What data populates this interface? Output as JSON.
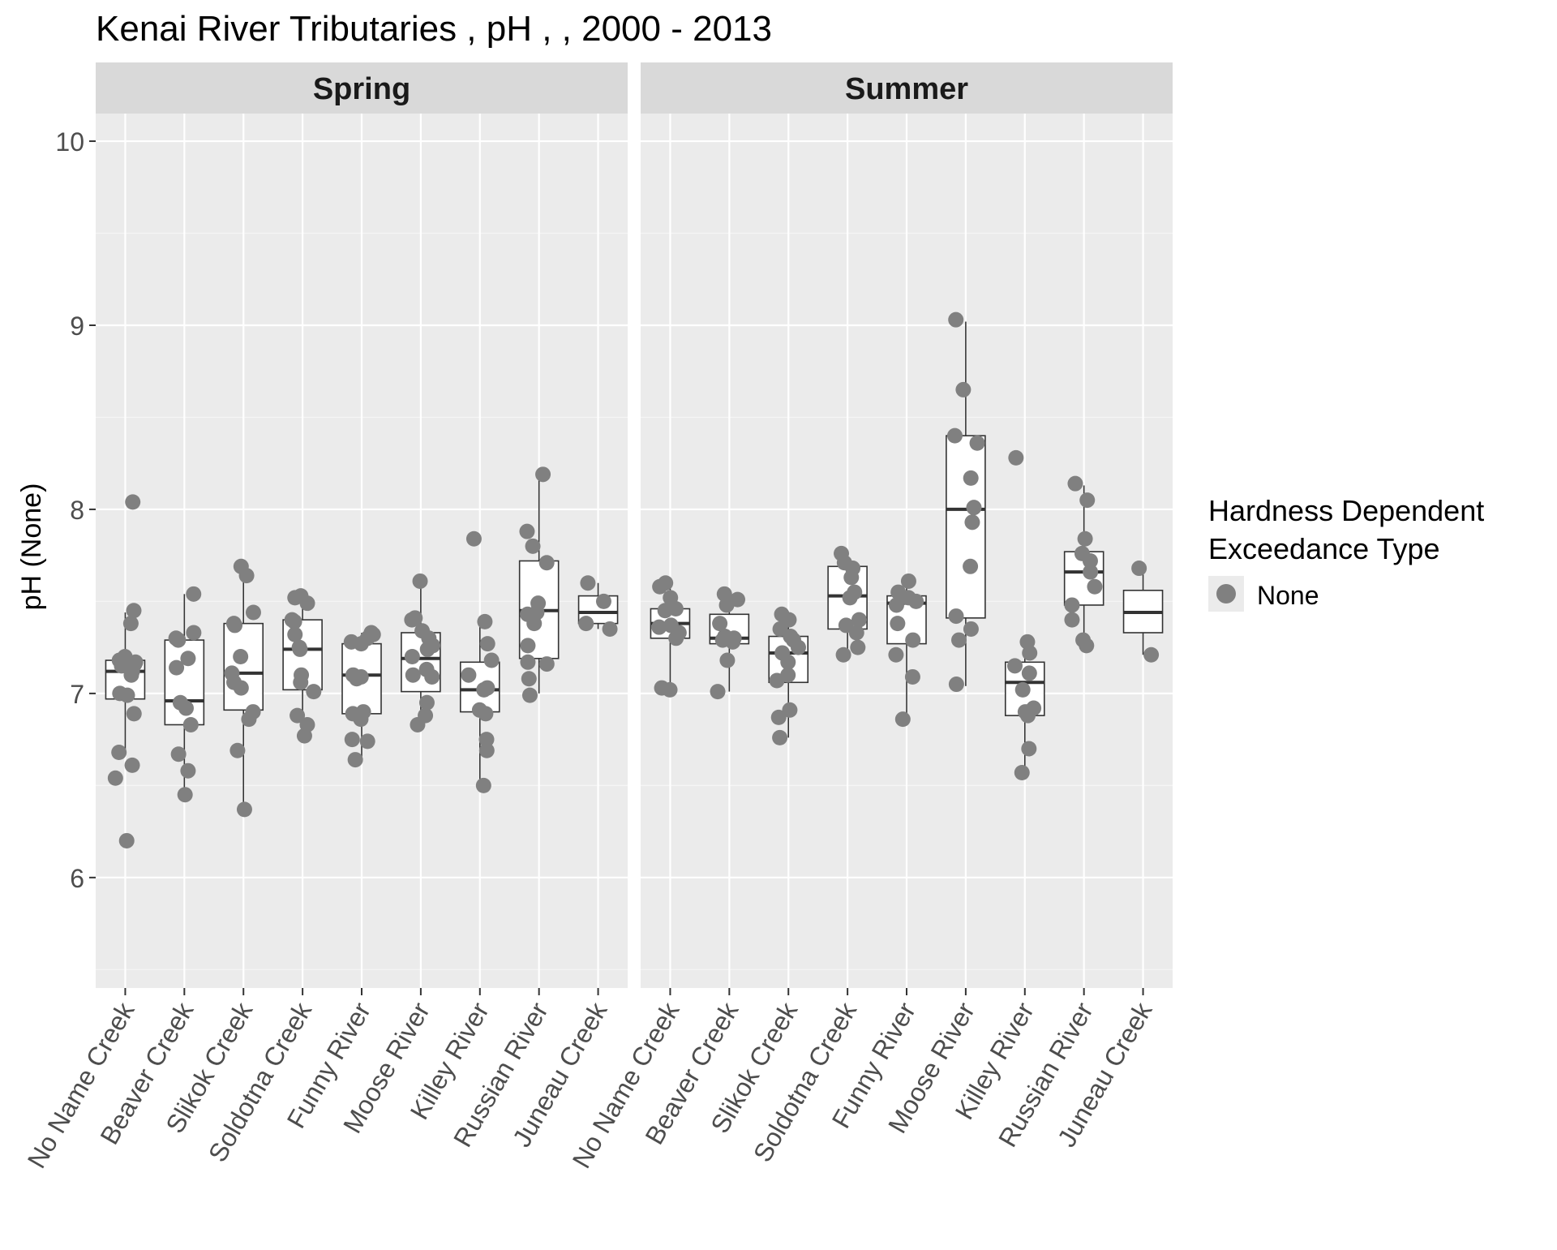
{
  "chart_data": {
    "type": "boxplot",
    "title": "Kenai River Tributaries , pH ,  , 2000 - 2013",
    "ylabel": "pH (None)",
    "ylim": [
      5.4,
      10.15
    ],
    "yticks": [
      6,
      7,
      8,
      9,
      10
    ],
    "ytick_labels": [
      "6",
      "7",
      "8",
      "9",
      "10"
    ],
    "grid": true,
    "categories": [
      "No Name Creek",
      "Beaver Creek",
      "Slikok Creek",
      "Soldotna Creek",
      "Funny River",
      "Moose River",
      "Killey River",
      "Russian River",
      "Juneau Creek"
    ],
    "legend": {
      "title_line1": "Hardness Dependent",
      "title_line2": "Exceedance Type",
      "position": "right",
      "entries": [
        {
          "label": "None",
          "color": "#808080"
        }
      ]
    },
    "colors": {
      "points": "#808080",
      "panel_bg": "#ebebeb",
      "strip_bg": "#d9d9d9",
      "box_fill": "#ffffff",
      "box_line": "#333333"
    },
    "panels": [
      {
        "name": "Spring",
        "boxes": [
          {
            "category": "No Name Creek",
            "min": 6.68,
            "q1": 6.97,
            "median": 7.12,
            "q3": 7.18,
            "max": 7.44,
            "points": [
              8.04,
              7.45,
              7.38,
              7.2,
              7.18,
              7.17,
              7.16,
              7.15,
              7.13,
              7.12,
              7.1,
              7.0,
              6.99,
              6.89,
              6.68,
              6.61,
              6.54,
              6.2
            ]
          },
          {
            "category": "Beaver Creek",
            "min": 6.45,
            "q1": 6.83,
            "median": 6.96,
            "q3": 7.29,
            "max": 7.54,
            "points": [
              7.54,
              7.33,
              7.3,
              7.29,
              7.19,
              7.14,
              6.95,
              6.92,
              6.83,
              6.67,
              6.58,
              6.45
            ]
          },
          {
            "category": "Slikok Creek",
            "min": 6.38,
            "q1": 6.91,
            "median": 7.11,
            "q3": 7.38,
            "max": 7.69,
            "points": [
              7.69,
              7.64,
              7.44,
              7.38,
              7.37,
              7.2,
              7.11,
              7.06,
              7.03,
              6.9,
              6.86,
              6.69,
              6.37
            ]
          },
          {
            "category": "Soldotna Creek",
            "min": 6.77,
            "q1": 7.02,
            "median": 7.24,
            "q3": 7.4,
            "max": 7.53,
            "points": [
              7.53,
              7.52,
              7.49,
              7.4,
              7.39,
              7.32,
              7.25,
              7.24,
              7.1,
              7.06,
              7.01,
              6.88,
              6.83,
              6.77
            ]
          },
          {
            "category": "Funny River",
            "min": 6.64,
            "q1": 6.89,
            "median": 7.1,
            "q3": 7.27,
            "max": 7.33,
            "points": [
              7.33,
              7.32,
              7.3,
              7.28,
              7.27,
              7.1,
              7.09,
              7.08,
              6.9,
              6.89,
              6.86,
              6.75,
              6.74,
              6.64
            ]
          },
          {
            "category": "Moose River",
            "min": 6.83,
            "q1": 7.01,
            "median": 7.19,
            "q3": 7.33,
            "max": 7.6,
            "points": [
              7.61,
              7.41,
              7.4,
              7.34,
              7.3,
              7.26,
              7.24,
              7.2,
              7.13,
              7.1,
              7.09,
              6.95,
              6.88,
              6.83
            ]
          },
          {
            "category": "Killey River",
            "min": 6.51,
            "q1": 6.9,
            "median": 7.02,
            "q3": 7.17,
            "max": 7.38,
            "points": [
              7.84,
              7.39,
              7.27,
              7.18,
              7.1,
              7.03,
              7.02,
              6.91,
              6.89,
              6.75,
              6.69,
              6.5
            ]
          },
          {
            "category": "Russian River",
            "min": 7.0,
            "q1": 7.19,
            "median": 7.45,
            "q3": 7.72,
            "max": 8.19,
            "points": [
              8.19,
              7.88,
              7.8,
              7.71,
              7.49,
              7.44,
              7.43,
              7.38,
              7.26,
              7.17,
              7.16,
              7.08,
              6.99
            ]
          },
          {
            "category": "Juneau Creek",
            "min": 7.35,
            "q1": 7.38,
            "median": 7.44,
            "q3": 7.53,
            "max": 7.6,
            "points": [
              7.6,
              7.5,
              7.38,
              7.35
            ]
          }
        ]
      },
      {
        "name": "Summer",
        "boxes": [
          {
            "category": "No Name Creek",
            "min": 7.02,
            "q1": 7.3,
            "median": 7.38,
            "q3": 7.46,
            "max": 7.58,
            "points": [
              7.6,
              7.58,
              7.52,
              7.46,
              7.45,
              7.37,
              7.36,
              7.33,
              7.3,
              7.03,
              7.02
            ]
          },
          {
            "category": "Beaver Creek",
            "min": 7.01,
            "q1": 7.27,
            "median": 7.3,
            "q3": 7.43,
            "max": 7.54,
            "points": [
              7.54,
              7.51,
              7.48,
              7.38,
              7.31,
              7.3,
              7.29,
              7.28,
              7.18,
              7.01
            ]
          },
          {
            "category": "Slikok Creek",
            "min": 6.76,
            "q1": 7.06,
            "median": 7.22,
            "q3": 7.31,
            "max": 7.43,
            "points": [
              7.43,
              7.4,
              7.35,
              7.31,
              7.29,
              7.25,
              7.22,
              7.17,
              7.1,
              7.07,
              6.91,
              6.87,
              6.76
            ]
          },
          {
            "category": "Soldotna Creek",
            "min": 7.21,
            "q1": 7.35,
            "median": 7.53,
            "q3": 7.69,
            "max": 7.76,
            "points": [
              7.76,
              7.71,
              7.68,
              7.63,
              7.55,
              7.52,
              7.4,
              7.37,
              7.33,
              7.25,
              7.21
            ]
          },
          {
            "category": "Funny River",
            "min": 6.86,
            "q1": 7.27,
            "median": 7.49,
            "q3": 7.53,
            "max": 7.58,
            "points": [
              7.61,
              7.55,
              7.52,
              7.5,
              7.48,
              7.38,
              7.29,
              7.21,
              7.09,
              6.86
            ]
          },
          {
            "category": "Moose River",
            "min": 7.04,
            "q1": 7.41,
            "median": 8.0,
            "q3": 8.4,
            "max": 9.02,
            "points": [
              9.03,
              8.65,
              8.4,
              8.36,
              8.17,
              8.01,
              7.93,
              7.69,
              7.42,
              7.35,
              7.29,
              7.05
            ]
          },
          {
            "category": "Killey River",
            "min": 6.6,
            "q1": 6.88,
            "median": 7.06,
            "q3": 7.17,
            "max": 7.25,
            "points": [
              8.28,
              7.28,
              7.22,
              7.15,
              7.11,
              7.02,
              6.92,
              6.9,
              6.88,
              6.7,
              6.57
            ]
          },
          {
            "category": "Russian River",
            "min": 7.27,
            "q1": 7.48,
            "median": 7.66,
            "q3": 7.77,
            "max": 8.13,
            "points": [
              8.14,
              8.05,
              7.84,
              7.76,
              7.72,
              7.66,
              7.58,
              7.48,
              7.4,
              7.29,
              7.26
            ]
          },
          {
            "category": "Juneau Creek",
            "min": 7.21,
            "q1": 7.33,
            "median": 7.44,
            "q3": 7.56,
            "max": 7.68,
            "points": [
              7.68,
              7.21
            ]
          }
        ]
      }
    ]
  }
}
